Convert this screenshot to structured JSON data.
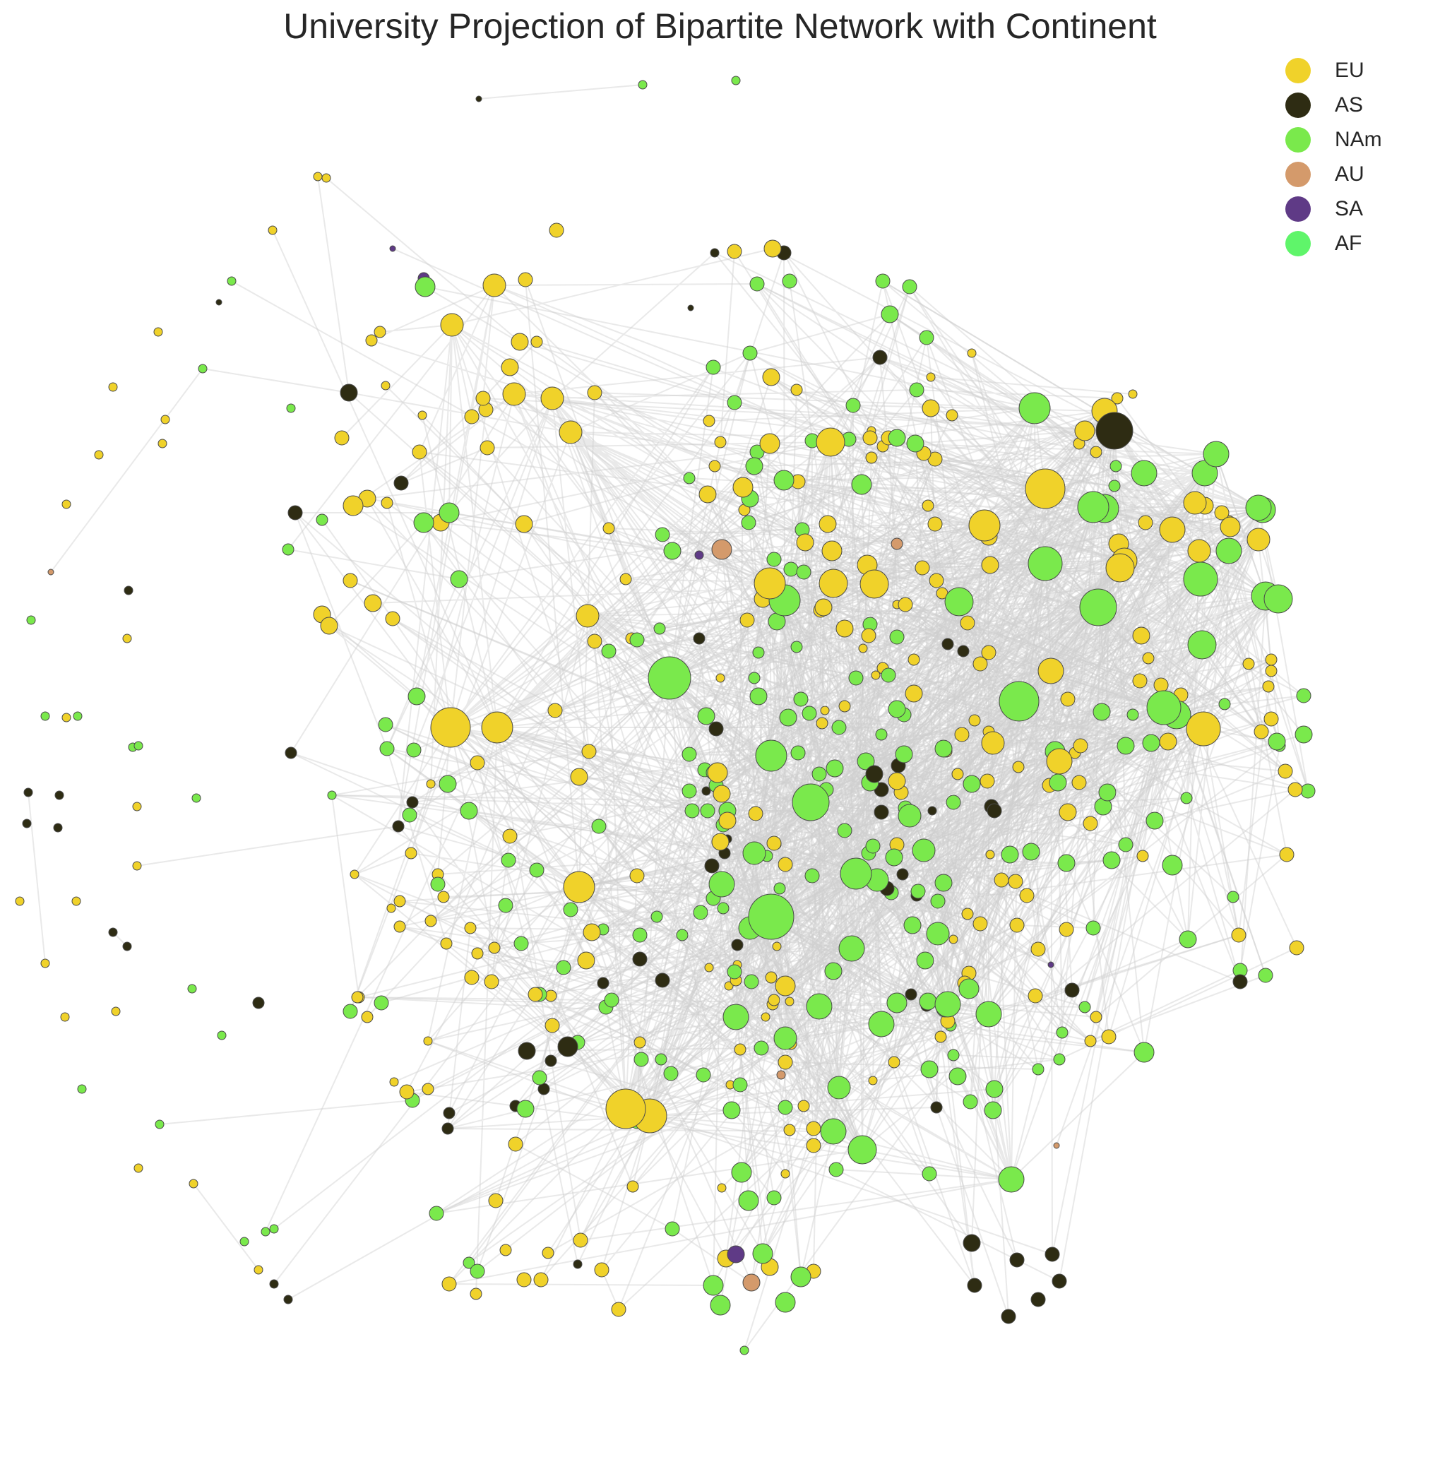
{
  "title": "University Projection of Bipartite Network with Continent",
  "legend": [
    {
      "label": "EU",
      "color": "#f0d22a"
    },
    {
      "label": "AS",
      "color": "#2e2c13"
    },
    {
      "label": "NAm",
      "color": "#7ae94c"
    },
    {
      "label": "AU",
      "color": "#d49a6b"
    },
    {
      "label": "SA",
      "color": "#5f3a86"
    },
    {
      "label": "AF",
      "color": "#5ff56a"
    }
  ],
  "colors": {
    "edge": "#cfcfcf",
    "node_stroke": "#4a4a4a"
  }
}
